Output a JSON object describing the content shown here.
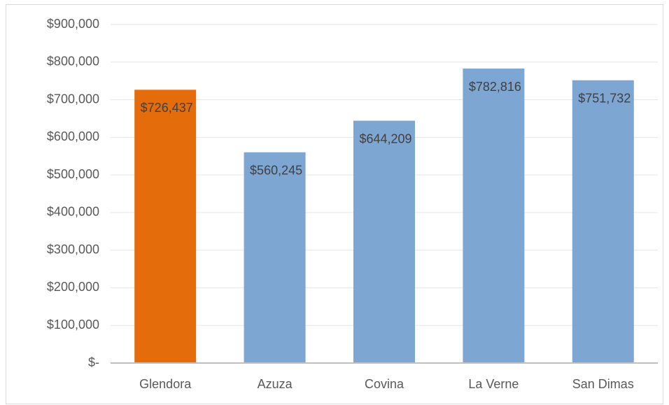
{
  "chart_data": {
    "type": "bar",
    "categories": [
      "Glendora",
      "Azuza",
      "Covina",
      "La Verne",
      "San Dimas"
    ],
    "values": [
      726437,
      560245,
      644209,
      782816,
      751732
    ],
    "value_labels": [
      "$726,437",
      "$560,245",
      "$644,209",
      "$782,816",
      "$751,732"
    ],
    "colors": [
      "#e46c0a",
      "#7ea6d3",
      "#7ea6d3",
      "#7ea6d3",
      "#7ea6d3"
    ],
    "ylim": [
      0,
      900000
    ],
    "yticks": [
      {
        "value": 0,
        "label": "$-"
      },
      {
        "value": 100000,
        "label": "$100,000"
      },
      {
        "value": 200000,
        "label": "$200,000"
      },
      {
        "value": 300000,
        "label": "$300,000"
      },
      {
        "value": 400000,
        "label": "$400,000"
      },
      {
        "value": 500000,
        "label": "$500,000"
      },
      {
        "value": 600000,
        "label": "$600,000"
      },
      {
        "value": 700000,
        "label": "$700,000"
      },
      {
        "value": 800000,
        "label": "$800,000"
      },
      {
        "value": 900000,
        "label": "$900,000"
      }
    ],
    "grid": true
  }
}
